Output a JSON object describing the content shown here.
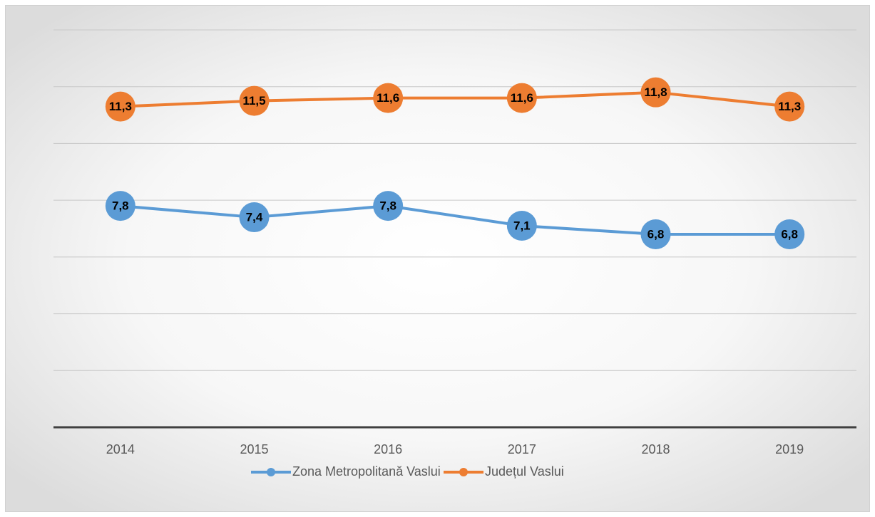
{
  "chart_data": {
    "type": "line",
    "categories": [
      "2014",
      "2015",
      "2016",
      "2017",
      "2018",
      "2019"
    ],
    "series": [
      {
        "name": "Zona Metropolitană Vaslui",
        "color": "#5b9bd5",
        "values": [
          7.8,
          7.4,
          7.8,
          7.1,
          6.8,
          6.8
        ],
        "value_labels": [
          "7,8",
          "7,4",
          "7,8",
          "7,1",
          "6,8",
          "6,8"
        ]
      },
      {
        "name": "Județul Vaslui",
        "color": "#ed7d31",
        "values": [
          11.3,
          11.5,
          11.6,
          11.6,
          11.8,
          11.3
        ],
        "value_labels": [
          "11,3",
          "11,5",
          "11,6",
          "11,6",
          "11,8",
          "11,3"
        ]
      }
    ],
    "ylim": [
      0,
      14
    ],
    "yticks": [
      0,
      2,
      4,
      6,
      8,
      10,
      12,
      14
    ],
    "grid": true,
    "legend": "bottom"
  }
}
